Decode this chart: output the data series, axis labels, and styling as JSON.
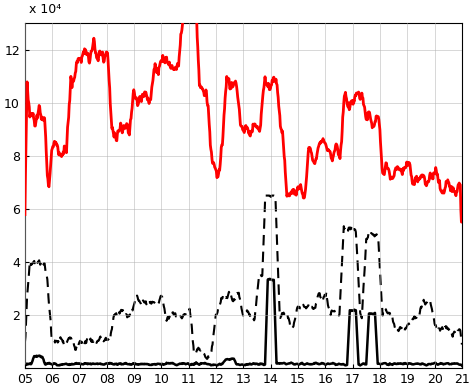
{
  "x_start": 5,
  "x_end": 21,
  "x_ticks": [
    5,
    6,
    7,
    8,
    9,
    10,
    11,
    12,
    13,
    14,
    15,
    16,
    17,
    18,
    19,
    20,
    21
  ],
  "x_tick_labels": [
    "05",
    "06",
    "07",
    "08",
    "09",
    "10",
    "11",
    "12",
    "13",
    "14",
    "15",
    "16",
    "17",
    "18",
    "19",
    "20",
    "21"
  ],
  "ylim": [
    0,
    130000.0
  ],
  "y_ticks": [
    0,
    20000.0,
    40000.0,
    60000.0,
    80000.0,
    100000.0,
    120000.0
  ],
  "y_tick_labels": [
    "",
    "2",
    "4",
    "6",
    "8",
    "10",
    "12"
  ],
  "exponent_label": "x 10⁴",
  "background_color": "#ffffff",
  "grid_color": "#b0b0b0",
  "red_line_color": "#ff0000",
  "black_solid_color": "#000000",
  "black_dash_color": "#000000",
  "red_linewidth": 2.0,
  "solid_linewidth": 1.8,
  "dash_linewidth": 1.5
}
